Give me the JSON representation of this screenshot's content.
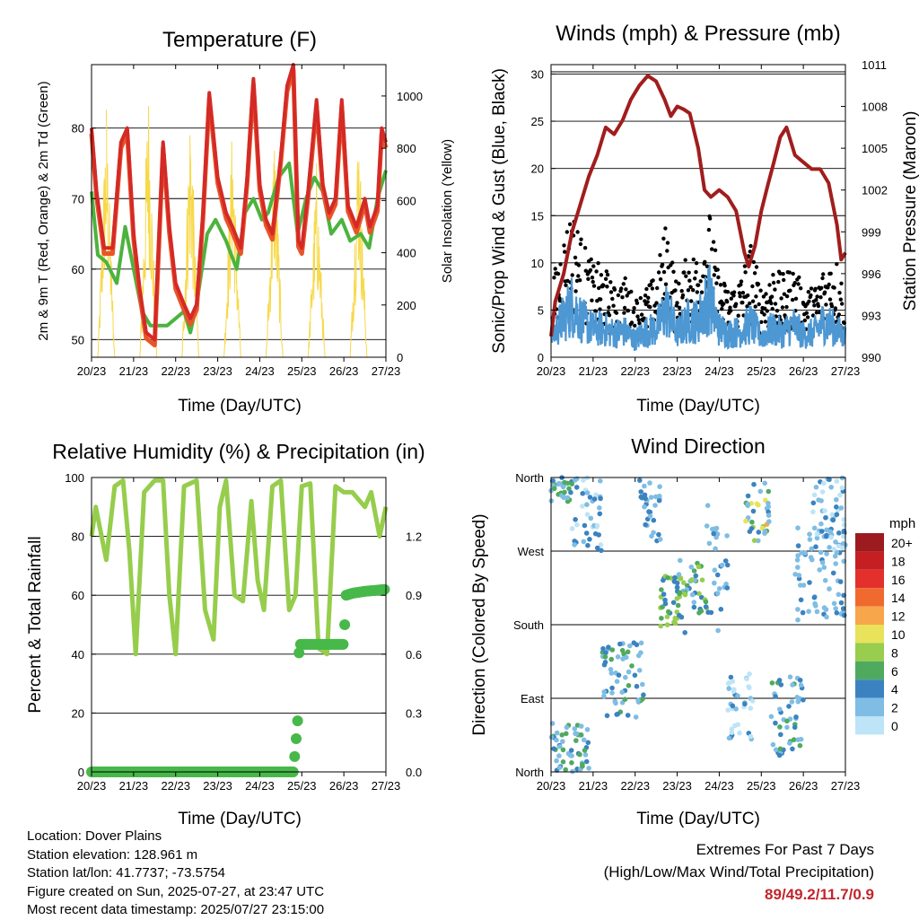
{
  "colors": {
    "t2m": "#e8552a",
    "t9m": "#d42a26",
    "td": "#4cb33e",
    "solar": "#f7d848",
    "wind": "#4d97d3",
    "gust": "#000000",
    "pressure": "#a11d1d",
    "rh": "#96cd4c",
    "rain": "#47b84a",
    "extremes": "#c0262c"
  },
  "chart_data": [
    {
      "type": "line",
      "title": "Temperature (F)",
      "xlabel": "Time (Day/UTC)",
      "ylabel": "2m & 9m T (Red, Orange) & 2m Td (Green)",
      "y2label": "Solar Insolation (Yellow)",
      "xticks": [
        "20/23",
        "21/23",
        "22/23",
        "23/23",
        "24/23",
        "25/23",
        "26/23",
        "27/23"
      ],
      "xlim": [
        0,
        7
      ],
      "ylim": [
        47.5,
        89
      ],
      "yticks": [
        50,
        60,
        70,
        80
      ],
      "y2lim": [
        0,
        1120
      ],
      "y2ticks": [
        0,
        200,
        400,
        600,
        800,
        1000
      ],
      "grid": "horizontal",
      "series": [
        {
          "key": "temp",
          "x": [
            0,
            0.12,
            0.3,
            0.5,
            0.7,
            0.85,
            1.0,
            1.15,
            1.3,
            1.5,
            1.6,
            1.7,
            1.85,
            2.0,
            2.2,
            2.35,
            2.5,
            2.65,
            2.8,
            3.0,
            3.2,
            3.35,
            3.55,
            3.7,
            3.85,
            4.0,
            4.15,
            4.3,
            4.5,
            4.65,
            4.8,
            4.92,
            5.0,
            5.15,
            5.35,
            5.5,
            5.65,
            5.8,
            5.95,
            6.1,
            6.3,
            6.5,
            6.62,
            6.8,
            6.9,
            7.0
          ],
          "y": [
            80,
            71,
            63,
            63,
            78,
            80,
            65,
            57,
            51,
            50,
            64,
            78,
            66,
            58,
            55,
            53,
            55,
            68,
            85,
            73,
            68,
            66,
            63,
            73,
            87,
            72,
            67,
            65,
            76,
            86,
            89,
            64,
            63,
            71,
            84,
            72,
            68,
            70,
            84,
            69,
            66,
            70,
            66,
            69,
            80,
            78
          ]
        },
        {
          "key": "dew",
          "x": [
            0,
            0.15,
            0.35,
            0.6,
            0.8,
            1.0,
            1.2,
            1.4,
            1.6,
            1.8,
            2.0,
            2.2,
            2.35,
            2.5,
            2.75,
            2.95,
            3.2,
            3.45,
            3.65,
            3.85,
            4.05,
            4.2,
            4.45,
            4.7,
            4.9,
            5.1,
            5.3,
            5.5,
            5.7,
            5.95,
            6.15,
            6.4,
            6.6,
            6.8,
            7.0
          ],
          "y": [
            71,
            62,
            61,
            58,
            66,
            60,
            54,
            52,
            52,
            52,
            53,
            54,
            51,
            55,
            65,
            67,
            64,
            60,
            68,
            70,
            67,
            68,
            73,
            75,
            65,
            70,
            73,
            71,
            65,
            67,
            64,
            65,
            63,
            70,
            74
          ]
        },
        {
          "key": "solar",
          "x": [
            0.15,
            0.35,
            0.55,
            1.15,
            1.35,
            1.55,
            2.15,
            2.35,
            2.55,
            3.15,
            3.35,
            3.55,
            4.15,
            4.35,
            4.55,
            5.15,
            5.35,
            5.55,
            6.15,
            6.35,
            6.55
          ],
          "y": [
            0,
            1000,
            0,
            0,
            1080,
            0,
            0,
            1010,
            0,
            0,
            920,
            0,
            0,
            900,
            0,
            0,
            760,
            0,
            0,
            940,
            0
          ]
        }
      ]
    },
    {
      "type": "scatter",
      "title": "Winds (mph) & Pressure (mb)",
      "xlabel": "Time (Day/UTC)",
      "ylabel": "Sonic/Prop Wind & Gust (Blue, Black)",
      "y2label": "Station Pressure (Maroon)",
      "xticks": [
        "20/23",
        "21/23",
        "22/23",
        "23/23",
        "24/23",
        "25/23",
        "26/23",
        "27/23"
      ],
      "xlim": [
        0,
        7
      ],
      "ylim": [
        0,
        31
      ],
      "yticks": [
        0,
        5,
        10,
        15,
        20,
        25,
        30
      ],
      "y2lim": [
        990,
        1011
      ],
      "y2ticks": [
        990,
        993,
        996,
        999,
        1002,
        1005,
        1008,
        1011
      ],
      "grid": "horizontal",
      "series": [
        {
          "key": "pressure",
          "x": [
            0,
            0.1,
            0.3,
            0.5,
            0.7,
            0.9,
            1.1,
            1.3,
            1.5,
            1.7,
            1.9,
            2.1,
            2.3,
            2.5,
            2.7,
            2.85,
            3.0,
            3.15,
            3.3,
            3.5,
            3.65,
            3.8,
            4.0,
            4.2,
            4.4,
            4.6,
            4.7,
            4.85,
            5.0,
            5.15,
            5.3,
            5.45,
            5.6,
            5.8,
            6.0,
            6.2,
            6.4,
            6.6,
            6.8,
            6.9,
            7.0
          ],
          "y": [
            991.5,
            994,
            996,
            999,
            1001,
            1003,
            1004.5,
            1006.5,
            1006,
            1007,
            1008.5,
            1009.5,
            1010.2,
            1009.8,
            1008.5,
            1007.3,
            1008,
            1007.8,
            1007.5,
            1005,
            1002,
            1001.5,
            1002,
            1001.5,
            1000.5,
            997.5,
            996.5,
            998,
            1000.5,
            1002.3,
            1004,
            1005.8,
            1006.5,
            1004.5,
            1004,
            1003.5,
            1003.5,
            1002.5,
            999.5,
            997,
            997.5
          ]
        },
        {
          "key": "wind",
          "x": [
            0,
            0.25,
            0.5,
            0.75,
            1.0,
            1.25,
            1.5,
            1.75,
            2.0,
            2.25,
            2.5,
            2.75,
            3.0,
            3.25,
            3.5,
            3.75,
            4.0,
            4.25,
            4.5,
            4.75,
            5.0,
            5.25,
            5.5,
            5.75,
            6.0,
            6.25,
            6.5,
            6.75,
            7.0
          ],
          "y": [
            2.5,
            4.5,
            6.5,
            4.5,
            3.5,
            3.5,
            3,
            3.2,
            2.2,
            3.2,
            3.5,
            6,
            3,
            4.5,
            4.5,
            7.5,
            3.5,
            3,
            3.2,
            4.2,
            2.5,
            3.5,
            3,
            4,
            2.8,
            3,
            4.5,
            3.5,
            2.5
          ]
        },
        {
          "key": "gust",
          "x": [
            0,
            0.25,
            0.5,
            0.75,
            1.0,
            1.25,
            1.5,
            1.75,
            2.0,
            2.25,
            2.5,
            2.75,
            3.0,
            3.25,
            3.5,
            3.75,
            4.0,
            4.25,
            4.5,
            4.75,
            5.0,
            5.25,
            5.5,
            5.75,
            6.0,
            6.25,
            6.5,
            6.75,
            7.0
          ],
          "y": [
            6,
            10,
            13,
            10,
            8,
            8,
            6,
            7,
            5,
            6,
            7,
            12,
            6,
            9,
            9,
            13,
            7,
            6,
            7,
            10,
            6,
            8,
            7,
            8,
            6,
            6,
            8,
            9,
            6
          ]
        }
      ]
    },
    {
      "type": "line",
      "title": "Relative Humidity (%) & Precipitation (in)",
      "xlabel": "Time (Day/UTC)",
      "ylabel": "Percent & Total Rainfall",
      "xticks": [
        "20/23",
        "21/23",
        "22/23",
        "23/23",
        "24/23",
        "25/23",
        "26/23",
        "27/23"
      ],
      "xlim": [
        0,
        7
      ],
      "ylim": [
        0,
        100
      ],
      "yticks": [
        0,
        20,
        40,
        60,
        80,
        100
      ],
      "y2lim": [
        0,
        1.5
      ],
      "y2ticks": [
        "0.0",
        "0.3",
        "0.6",
        "0.9",
        "1.2"
      ],
      "grid": "horizontal",
      "series": [
        {
          "key": "rh",
          "x": [
            0,
            0.1,
            0.35,
            0.55,
            0.75,
            0.9,
            1.05,
            1.25,
            1.5,
            1.7,
            1.85,
            2.0,
            2.2,
            2.5,
            2.7,
            2.9,
            3.05,
            3.2,
            3.4,
            3.6,
            3.8,
            3.95,
            4.1,
            4.3,
            4.5,
            4.7,
            4.85,
            5.0,
            5.2,
            5.4,
            5.6,
            5.8,
            6.0,
            6.2,
            6.5,
            6.65,
            6.85,
            7.0
          ],
          "y": [
            80,
            90,
            72,
            97,
            99,
            75,
            40,
            95,
            99,
            99,
            60,
            40,
            97,
            99,
            55,
            45,
            90,
            99,
            60,
            58,
            92,
            65,
            55,
            97,
            99,
            55,
            60,
            97,
            98,
            42,
            40,
            97,
            95,
            95,
            90,
            95,
            80,
            90
          ]
        },
        {
          "key": "rain",
          "x": [
            0,
            4.8,
            4.85,
            4.9,
            4.93,
            4.97,
            6.0,
            6.05,
            6.2,
            6.5,
            7.0
          ],
          "y": [
            0,
            0,
            0.13,
            0.26,
            0.6,
            0.65,
            0.65,
            0.9,
            0.91,
            0.92,
            0.93
          ]
        }
      ]
    },
    {
      "type": "scatter",
      "title": "Wind Direction",
      "xlabel": "Time (Day/UTC)",
      "ylabel": "Direction (Colored By Speed)",
      "xticks": [
        "20/23",
        "21/23",
        "22/23",
        "23/23",
        "24/23",
        "25/23",
        "26/23",
        "27/23"
      ],
      "xlim": [
        0,
        7
      ],
      "ylim": [
        0,
        360
      ],
      "yticks": [
        "North",
        "East",
        "South",
        "West",
        "North"
      ],
      "grid": "horizontal",
      "legend_title": "mph",
      "legend_labels": [
        "20+",
        "18",
        "16",
        "14",
        "12",
        "10",
        "8",
        "6",
        "4",
        "2",
        "0"
      ],
      "legend_colors": [
        "#9b1b1f",
        "#c51f24",
        "#e4302c",
        "#f06a30",
        "#f7a64b",
        "#e8e35a",
        "#98cd4e",
        "#4faa5e",
        "#3b83c0",
        "#7fbde4",
        "#bde4f7"
      ],
      "legend_placement": "right",
      "clusters": [
        {
          "x": [
            0,
            0.5
          ],
          "dir": [
            330,
            360
          ],
          "speed": [
            1,
            7
          ]
        },
        {
          "x": [
            0,
            0.9
          ],
          "dir": [
            0,
            60
          ],
          "speed": [
            1,
            7
          ]
        },
        {
          "x": [
            0.5,
            1.2
          ],
          "dir": [
            270,
            360
          ],
          "speed": [
            0,
            5
          ]
        },
        {
          "x": [
            1.2,
            2.2
          ],
          "dir": [
            60,
            160
          ],
          "speed": [
            1,
            6
          ]
        },
        {
          "x": [
            2.1,
            2.6
          ],
          "dir": [
            280,
            360
          ],
          "speed": [
            1,
            5
          ]
        },
        {
          "x": [
            2.6,
            3.2
          ],
          "dir": [
            170,
            240
          ],
          "speed": [
            3,
            9
          ]
        },
        {
          "x": [
            3.0,
            3.7
          ],
          "dir": [
            190,
            260
          ],
          "speed": [
            2,
            9
          ]
        },
        {
          "x": [
            3.7,
            4.2
          ],
          "dir": [
            170,
            330
          ],
          "speed": [
            1,
            5
          ]
        },
        {
          "x": [
            4.2,
            4.8
          ],
          "dir": [
            40,
            120
          ],
          "speed": [
            0,
            4
          ]
        },
        {
          "x": [
            4.6,
            5.2
          ],
          "dir": [
            280,
            360
          ],
          "speed": [
            1,
            12
          ]
        },
        {
          "x": [
            5.2,
            6.0
          ],
          "dir": [
            20,
            120
          ],
          "speed": [
            1,
            7
          ]
        },
        {
          "x": [
            5.8,
            7.0
          ],
          "dir": [
            180,
            300
          ],
          "speed": [
            1,
            5
          ]
        },
        {
          "x": [
            6.2,
            7.0
          ],
          "dir": [
            270,
            360
          ],
          "speed": [
            0,
            4
          ]
        }
      ]
    }
  ],
  "info": {
    "location": "Location: Dover Plains",
    "elevation": "Station elevation: 128.961 m",
    "latlon": "Station lat/lon: 41.7737; -73.5754",
    "created": "Figure created on Sun, 2025-07-27, at 23:47 UTC",
    "timestamp": "Most recent data timestamp: 2025/07/27 23:15:00"
  },
  "extremes": {
    "title": "Extremes For Past 7 Days",
    "subtitle": "(High/Low/Max Wind/Total Precipitation)",
    "values": "89/49.2/11.7/0.9"
  }
}
